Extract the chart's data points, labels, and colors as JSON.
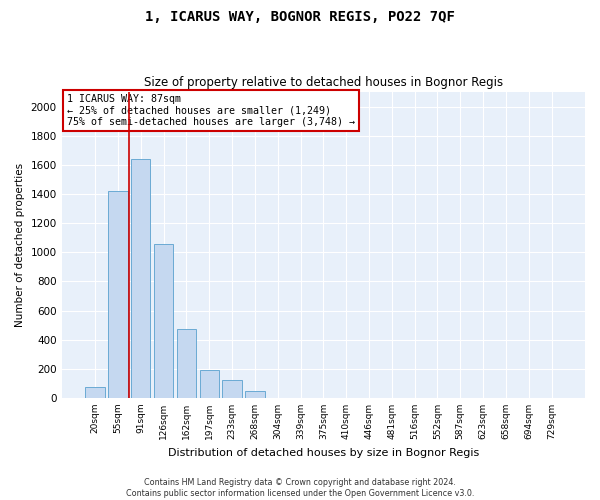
{
  "title": "1, ICARUS WAY, BOGNOR REGIS, PO22 7QF",
  "subtitle": "Size of property relative to detached houses in Bognor Regis",
  "xlabel": "Distribution of detached houses by size in Bognor Regis",
  "ylabel": "Number of detached properties",
  "bar_color": "#c5d8f0",
  "bar_edge_color": "#6aaad4",
  "background_color": "#e8f0fa",
  "categories": [
    "20sqm",
    "55sqm",
    "91sqm",
    "126sqm",
    "162sqm",
    "197sqm",
    "233sqm",
    "268sqm",
    "304sqm",
    "339sqm",
    "375sqm",
    "410sqm",
    "446sqm",
    "481sqm",
    "516sqm",
    "552sqm",
    "587sqm",
    "623sqm",
    "658sqm",
    "694sqm",
    "729sqm"
  ],
  "values": [
    75,
    1420,
    1640,
    1060,
    470,
    190,
    120,
    50,
    0,
    0,
    0,
    0,
    0,
    0,
    0,
    0,
    0,
    0,
    0,
    0,
    0
  ],
  "ylim": [
    0,
    2100
  ],
  "yticks": [
    0,
    200,
    400,
    600,
    800,
    1000,
    1200,
    1400,
    1600,
    1800,
    2000
  ],
  "red_line_x": 1.5,
  "property_line_label": "1 ICARUS WAY: 87sqm",
  "annotation_line1": "← 25% of detached houses are smaller (1,249)",
  "annotation_line2": "75% of semi-detached houses are larger (3,748) →",
  "footer_line1": "Contains HM Land Registry data © Crown copyright and database right 2024.",
  "footer_line2": "Contains public sector information licensed under the Open Government Licence v3.0.",
  "grid_color": "#ffffff",
  "annotation_box_facecolor": "#ffffff",
  "annotation_box_edgecolor": "#cc0000"
}
